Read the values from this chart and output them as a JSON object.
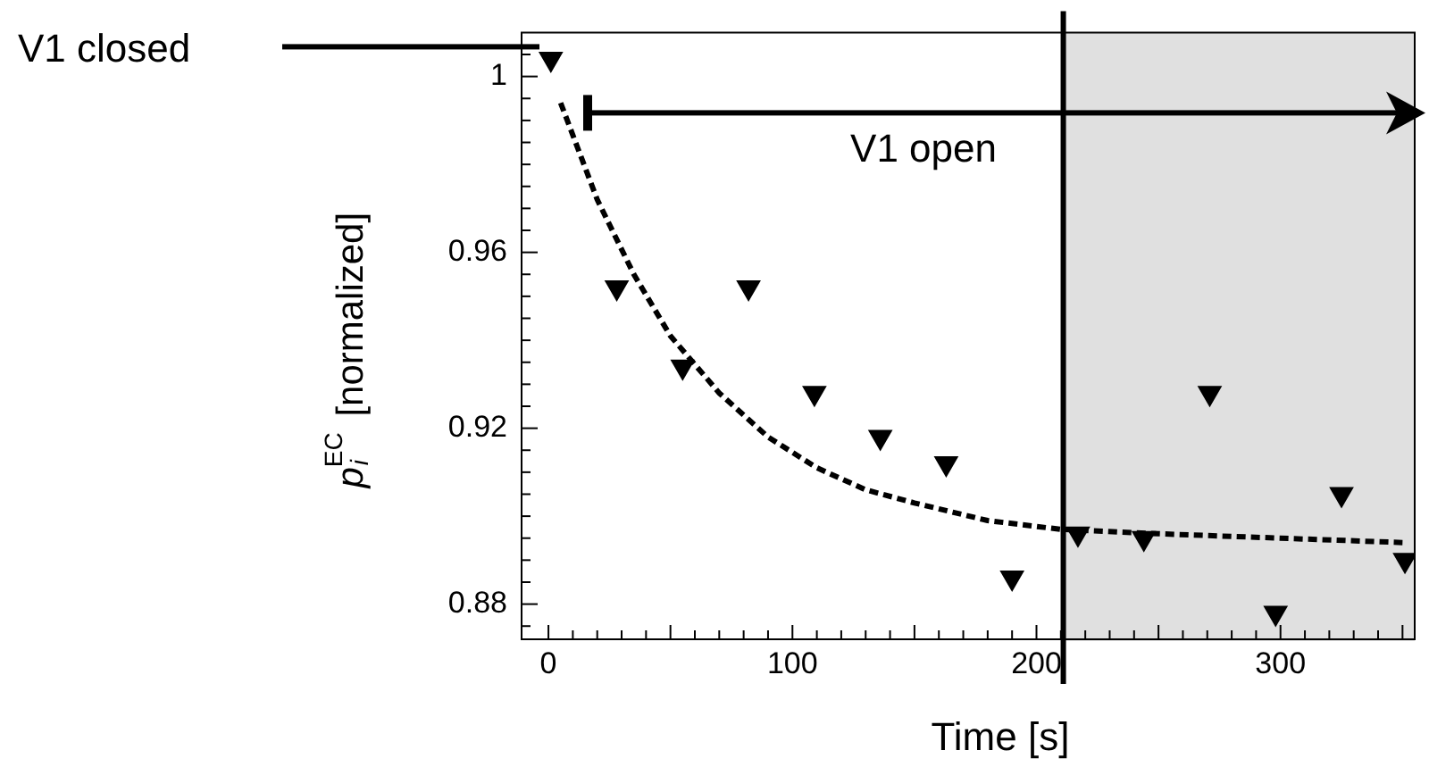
{
  "chart_data": {
    "type": "scatter",
    "xlabel": "Time [s]",
    "ylabel": "p$_{i}$$^{EC}$ [normalized]",
    "xlim": [
      -11,
      355
    ],
    "ylim": [
      0.872,
      1.01
    ],
    "xticks": [
      0,
      {
        "value": 10,
        "label": null
      },
      {
        "value": 20,
        "label": null
      },
      {
        "value": 30,
        "label": null
      },
      {
        "value": 40,
        "label": null
      },
      {
        "value": 50,
        "label": null
      },
      {
        "value": 60,
        "label": null
      },
      {
        "value": 70,
        "label": null
      },
      {
        "value": 80,
        "label": null
      },
      {
        "value": 90,
        "label": null
      },
      100,
      {
        "value": 110,
        "label": null
      },
      {
        "value": 120,
        "label": null
      },
      {
        "value": 130,
        "label": null
      },
      {
        "value": 140,
        "label": null
      },
      {
        "value": 150,
        "label": null
      },
      {
        "value": 160,
        "label": null
      },
      {
        "value": 170,
        "label": null
      },
      {
        "value": 180,
        "label": null
      },
      {
        "value": 190,
        "label": null
      },
      200,
      {
        "value": 210,
        "label": null
      },
      {
        "value": 220,
        "label": null
      },
      {
        "value": 230,
        "label": null
      },
      {
        "value": 240,
        "label": null
      },
      {
        "value": 250,
        "label": null
      },
      {
        "value": 260,
        "label": null
      },
      {
        "value": 270,
        "label": null
      },
      {
        "value": 280,
        "label": null
      },
      {
        "value": 290,
        "label": null
      },
      300,
      {
        "value": 310,
        "label": null
      },
      {
        "value": 320,
        "label": null
      },
      {
        "value": 330,
        "label": null
      },
      {
        "value": 340,
        "label": null
      },
      {
        "value": 350,
        "label": null
      }
    ],
    "yticks": [
      {
        "value": 0.875,
        "label": null
      },
      0.88,
      {
        "value": 0.885,
        "label": null
      },
      {
        "value": 0.89,
        "label": null
      },
      {
        "value": 0.895,
        "label": null
      },
      {
        "value": 0.9,
        "label": null
      },
      {
        "value": 0.905,
        "label": null
      },
      {
        "value": 0.91,
        "label": null
      },
      {
        "value": 0.915,
        "label": null
      },
      0.92,
      {
        "value": 0.925,
        "label": null
      },
      {
        "value": 0.93,
        "label": null
      },
      {
        "value": 0.935,
        "label": null
      },
      {
        "value": 0.94,
        "label": null
      },
      {
        "value": 0.945,
        "label": null
      },
      {
        "value": 0.95,
        "label": null
      },
      {
        "value": 0.955,
        "label": null
      },
      0.96,
      {
        "value": 0.965,
        "label": null
      },
      {
        "value": 0.97,
        "label": null
      },
      {
        "value": 0.975,
        "label": null
      },
      {
        "value": 0.98,
        "label": null
      },
      {
        "value": 0.985,
        "label": null
      },
      {
        "value": 0.99,
        "label": null
      },
      {
        "value": 0.995,
        "label": null
      },
      1,
      {
        "value": 1.005,
        "label": null
      }
    ],
    "series": [
      {
        "type": "scatter",
        "color": "#000000",
        "marker": "triangle",
        "x": [
          1,
          28,
          55,
          82,
          109,
          136,
          163,
          190,
          217,
          244,
          271,
          298,
          325,
          351
        ],
        "values": [
          1.004,
          0.952,
          0.934,
          0.952,
          0.928,
          0.918,
          0.912,
          0.886,
          0.896,
          0.895,
          0.928,
          0.878,
          0.905,
          0.89
        ]
      },
      {
        "type": "line",
        "color": "#000000",
        "marker": "none",
        "line_style": "dashed",
        "x": [
          5,
          20,
          35,
          50,
          70,
          90,
          110,
          130,
          150,
          180,
          210,
          250,
          300,
          350
        ],
        "values": [
          0.994,
          0.972,
          0.955,
          0.941,
          0.928,
          0.918,
          0.911,
          0.906,
          0.903,
          0.899,
          0.897,
          0.896,
          0.895,
          0.894
        ]
      }
    ],
    "bands": [
      {
        "axis": "x",
        "from": 211,
        "to": 355,
        "color": "#e0e0e0"
      }
    ],
    "ref_lines": [
      {
        "axis": "x",
        "value": 211,
        "color": "#000000"
      }
    ],
    "annotations": [
      "V1 closed",
      "V1 open"
    ],
    "grid": false,
    "legend": false
  }
}
